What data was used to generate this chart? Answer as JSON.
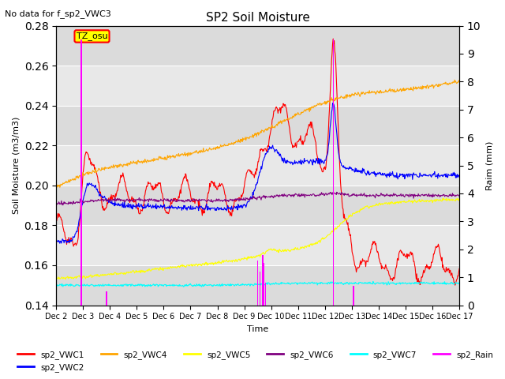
{
  "title": "SP2 Soil Moisture",
  "subtitle": "No data for f_sp2_VWC3",
  "ylabel_left": "Soil Moisture (m3/m3)",
  "ylabel_right": "Raim (mm)",
  "xlabel": "Time",
  "ylim_left": [
    0.14,
    0.28
  ],
  "ylim_right": [
    0.0,
    10.0
  ],
  "yticks_left": [
    0.14,
    0.16,
    0.18,
    0.2,
    0.22,
    0.24,
    0.26,
    0.28
  ],
  "yticks_right": [
    0.0,
    1.0,
    2.0,
    3.0,
    4.0,
    5.0,
    6.0,
    7.0,
    8.0,
    9.0,
    10.0
  ],
  "xtick_labels": [
    "Dec 2",
    "Dec 3",
    "Dec 4",
    "Dec 5",
    "Dec 6",
    "Dec 7",
    "Dec 8",
    "Dec 9",
    "Dec 10",
    "Dec 11",
    "Dec 12",
    "Dec 13",
    "Dec 14",
    "Dec 15",
    "Dec 16",
    "Dec 17"
  ],
  "timezone_box": "TZ_osu",
  "timezone_box_color": "#ffff00",
  "timezone_box_border": "#ff0000",
  "colors": {
    "sp2_VWC1": "#ff0000",
    "sp2_VWC2": "#0000ff",
    "sp2_VWC4": "#ffa500",
    "sp2_VWC5": "#ffff00",
    "sp2_VWC6": "#800080",
    "sp2_VWC7": "#00ffff",
    "sp2_Rain": "#ff00ff"
  },
  "background_color": "#e8e8e8",
  "plot_bg_color": "#ffffff",
  "grid_color": "#ffffff",
  "legend_items_row1": [
    "sp2_VWC1",
    "sp2_VWC2",
    "sp2_VWC4",
    "sp2_VWC5",
    "sp2_VWC6",
    "sp2_VWC7"
  ],
  "legend_items_row2": [
    "sp2_Rain"
  ]
}
